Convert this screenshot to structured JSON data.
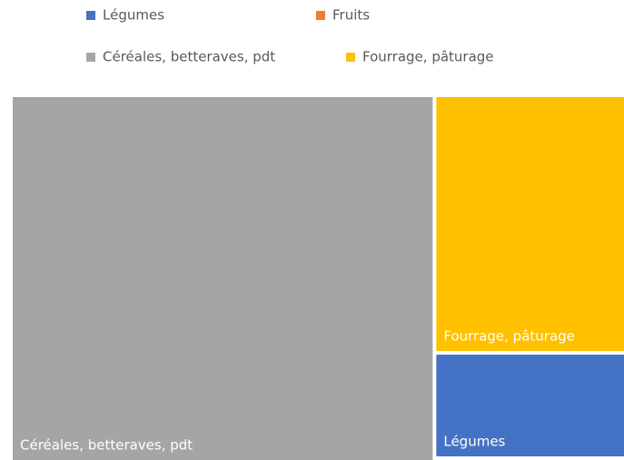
{
  "chart_data": {
    "type": "treemap",
    "categories": [
      "Légumes",
      "Fruits",
      "Céréales, betteraves, pdt",
      "Fourrage, pâturage"
    ],
    "values": [
      9,
      0,
      69,
      22
    ],
    "colors": [
      "#4472c4",
      "#ed7d31",
      "#a5a5a5",
      "#ffc000"
    ]
  }
}
